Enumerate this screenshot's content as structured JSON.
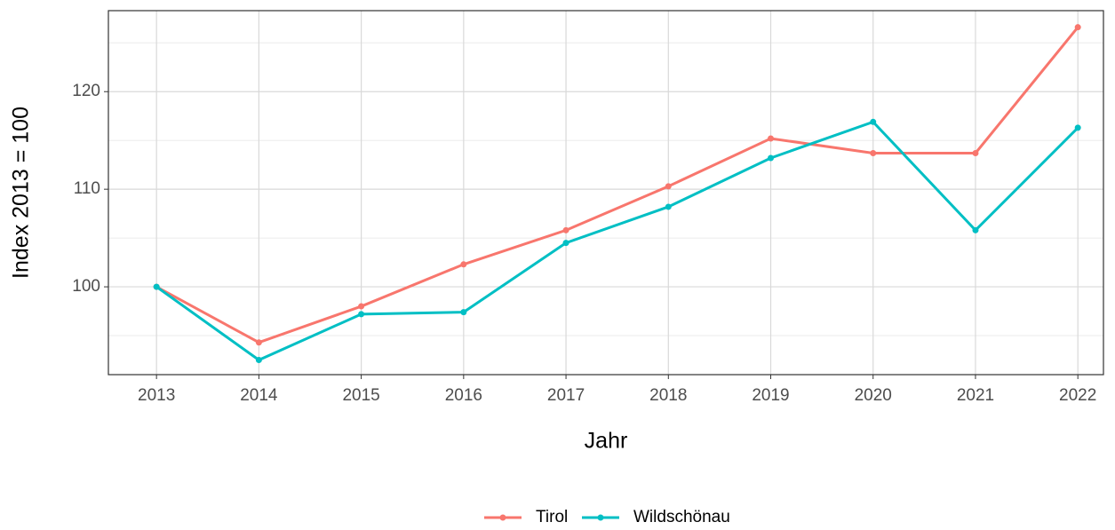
{
  "chart_data": {
    "type": "line",
    "x": [
      2013,
      2014,
      2015,
      2016,
      2017,
      2018,
      2019,
      2020,
      2021,
      2022
    ],
    "series": [
      {
        "name": "Tirol",
        "color": "#F8766D",
        "values": [
          100,
          94.3,
          98.0,
          102.3,
          105.8,
          110.3,
          115.2,
          113.7,
          113.7,
          126.6
        ]
      },
      {
        "name": "Wildschönau",
        "color": "#00BFC4",
        "values": [
          100,
          92.5,
          97.2,
          97.4,
          104.5,
          108.2,
          113.2,
          116.9,
          105.8,
          116.3
        ]
      }
    ],
    "xlabel": "Jahr",
    "ylabel": "Index  2013  = 100",
    "xlim": [
      2012.53,
      2022.25
    ],
    "xticks": [
      2013,
      2014,
      2015,
      2016,
      2017,
      2018,
      2019,
      2020,
      2021,
      2022
    ],
    "ylim": [
      91.0,
      128.3
    ],
    "yticks": [
      100,
      110,
      120
    ],
    "y_minor_ticks": [
      95,
      105,
      115,
      125
    ],
    "grid": true,
    "legend": "bottom"
  }
}
